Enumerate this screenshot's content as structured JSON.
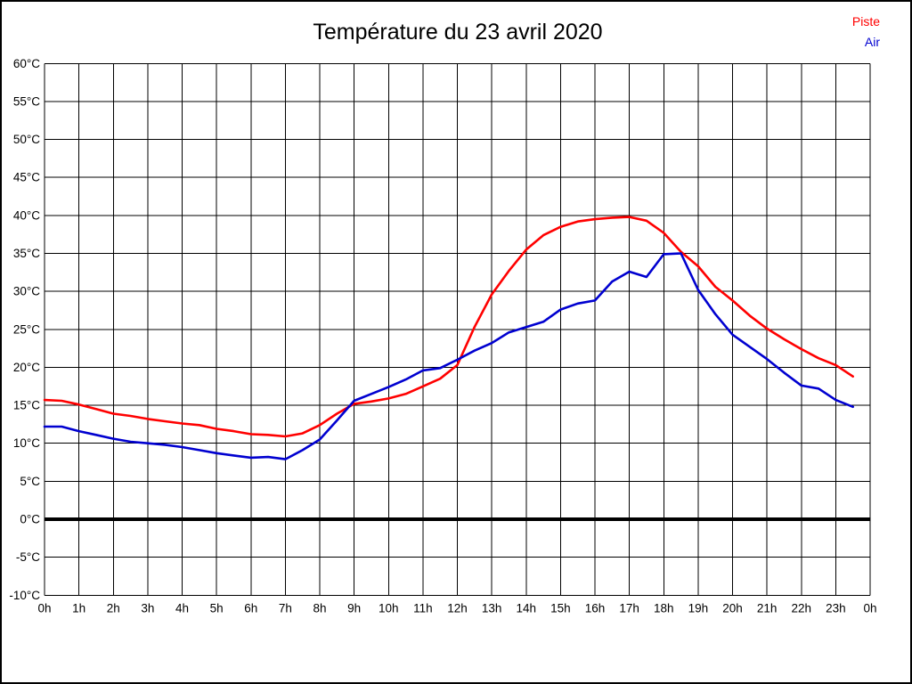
{
  "title": "Température du 23 avril 2020",
  "legend": [
    {
      "label": "Piste",
      "color": "#ff0000"
    },
    {
      "label": "Air",
      "color": "#0000d0"
    }
  ],
  "chart_data": {
    "type": "line",
    "title": "Température du 23 avril 2020",
    "xlabel": "",
    "ylabel": "",
    "x_unit": "hours",
    "xlim": [
      0,
      24
    ],
    "ylim": [
      -10,
      60
    ],
    "y_tick_step": 5,
    "grid": true,
    "zero_line_bold": true,
    "legend_position": "top-right",
    "x_tick_labels": [
      "0h",
      "1h",
      "2h",
      "3h",
      "4h",
      "5h",
      "6h",
      "7h",
      "8h",
      "9h",
      "10h",
      "11h",
      "12h",
      "13h",
      "14h",
      "15h",
      "16h",
      "17h",
      "18h",
      "19h",
      "20h",
      "21h",
      "22h",
      "23h",
      "0h"
    ],
    "y_tick_labels": [
      "60°C",
      "55°C",
      "50°C",
      "45°C",
      "40°C",
      "35°C",
      "30°C",
      "25°C",
      "20°C",
      "15°C",
      "10°C",
      "5°C",
      "0°C",
      "-5°C",
      "-10°C"
    ],
    "series": [
      {
        "name": "Piste",
        "color": "#ff0000",
        "x_start": 0,
        "x_step": 0.5,
        "values": [
          15.7,
          15.6,
          15.1,
          14.5,
          13.9,
          13.6,
          13.2,
          12.9,
          12.6,
          12.4,
          11.9,
          11.6,
          11.2,
          11.1,
          10.9,
          11.3,
          12.4,
          13.9,
          15.2,
          15.5,
          15.9,
          16.5,
          17.5,
          18.5,
          20.3,
          25.3,
          29.6,
          32.7,
          35.5,
          37.4,
          38.5,
          39.2,
          39.5,
          39.7,
          39.8,
          39.3,
          37.7,
          35.2,
          33.3,
          30.6,
          28.8,
          26.8,
          25.1,
          23.7,
          22.4,
          21.2,
          20.3,
          18.8
        ]
      },
      {
        "name": "Air",
        "color": "#0000d0",
        "x_start": 0,
        "x_step": 0.5,
        "values": [
          12.2,
          12.2,
          11.6,
          11.1,
          10.6,
          10.2,
          10.0,
          9.8,
          9.5,
          9.1,
          8.7,
          8.4,
          8.1,
          8.2,
          7.9,
          9.1,
          10.5,
          13.0,
          15.6,
          16.5,
          17.4,
          18.4,
          19.6,
          19.9,
          21.0,
          22.2,
          23.2,
          24.6,
          25.3,
          26.0,
          27.6,
          28.4,
          28.8,
          31.3,
          32.6,
          31.9,
          34.9,
          35.0,
          30.2,
          27.0,
          24.3,
          22.7,
          21.1,
          19.3,
          17.6,
          17.2,
          15.7,
          14.8
        ]
      }
    ]
  }
}
